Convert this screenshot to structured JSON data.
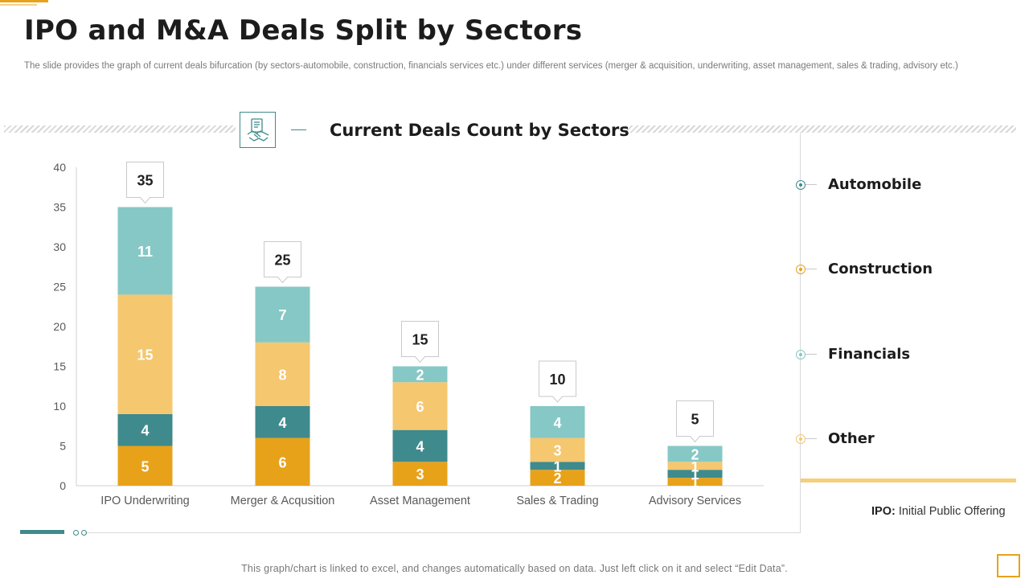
{
  "page": {
    "title": "IPO and M&A Deals Split by Sectors",
    "subtitle": "The slide provides the graph of current deals bifurcation (by sectors-automobile, construction, financials services etc.) under different services (merger & acquisition, underwriting, asset management, sales & trading, advisory etc.)",
    "chart_title": "Current Deals Count by Sectors",
    "footnote_term": "IPO:",
    "footnote_text": " Initial Public Offering",
    "bottom_note": "This graph/chart is linked to excel, and changes automatically based on data. Just left click on it and select “Edit Data”.",
    "icon": "handshake-document-icon"
  },
  "chart_data": {
    "type": "bar",
    "stacked": true,
    "categories": [
      "IPO Underwriting",
      "Merger & Acqusition",
      "Asset Management",
      "Sales & Trading",
      "Advisory Services"
    ],
    "series": [
      {
        "name": "Automobile",
        "color": "#3f8a8c"
      },
      {
        "name": "Construction",
        "color": "#e8a21a"
      },
      {
        "name": "Financials",
        "color": "#86c8c5"
      },
      {
        "name": "Other",
        "color": "#f5c76f"
      }
    ],
    "stack_order": [
      {
        "series": "Construction",
        "values": [
          5,
          6,
          3,
          2,
          1
        ]
      },
      {
        "series": "Automobile",
        "values": [
          4,
          4,
          4,
          1,
          1
        ]
      },
      {
        "series": "Other",
        "values": [
          15,
          8,
          6,
          3,
          1
        ]
      },
      {
        "series": "Financials",
        "values": [
          11,
          7,
          2,
          4,
          2
        ]
      }
    ],
    "totals": [
      35,
      25,
      15,
      10,
      5
    ],
    "ylim": [
      0,
      40
    ],
    "yticks": [
      0,
      5,
      10,
      15,
      20,
      25,
      30,
      35,
      40
    ],
    "grid": false,
    "legend_position": "right"
  }
}
